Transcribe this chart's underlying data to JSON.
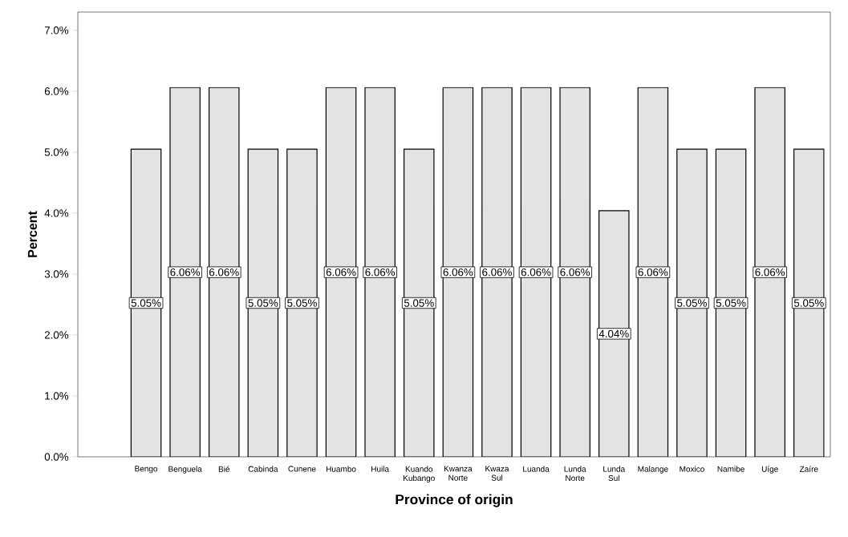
{
  "chart_data": {
    "type": "bar",
    "xlabel": "Province of origin",
    "ylabel": "Percent",
    "categories": [
      "Bengo",
      "Benguela",
      "Bié",
      "Cabinda",
      "Cunene",
      "Huambo",
      "Huila",
      "Kuando Kubango",
      "Kwanza Norte",
      "Kwaza Sul",
      "Luanda",
      "Lunda Norte",
      "Lunda Sul",
      "Malange",
      "Moxico",
      "Namibe",
      "Uíge",
      "Zaíre"
    ],
    "values": [
      5.05,
      6.06,
      6.06,
      5.05,
      5.05,
      6.06,
      6.06,
      5.05,
      6.06,
      6.06,
      6.06,
      6.06,
      4.04,
      6.06,
      5.05,
      5.05,
      6.06,
      5.05
    ],
    "value_labels": [
      "5.05%",
      "6.06%",
      "6.06%",
      "5.05%",
      "5.05%",
      "6.06%",
      "6.06%",
      "5.05%",
      "6.06%",
      "6.06%",
      "6.06%",
      "6.06%",
      "4.04%",
      "6.06%",
      "5.05%",
      "5.05%",
      "6.06%",
      "5.05%"
    ],
    "color": "#e3e3e3",
    "ylim": [
      0,
      7.3
    ],
    "yticks": [
      {
        "value": 0,
        "label": "0.0%"
      },
      {
        "value": 1,
        "label": "1.0%"
      },
      {
        "value": 2,
        "label": "2.0%"
      },
      {
        "value": 3,
        "label": "3.0%"
      },
      {
        "value": 4,
        "label": "4.0%"
      },
      {
        "value": 5,
        "label": "5.0%"
      },
      {
        "value": 6,
        "label": "6.0%"
      },
      {
        "value": 7,
        "label": "7.0%"
      }
    ]
  }
}
